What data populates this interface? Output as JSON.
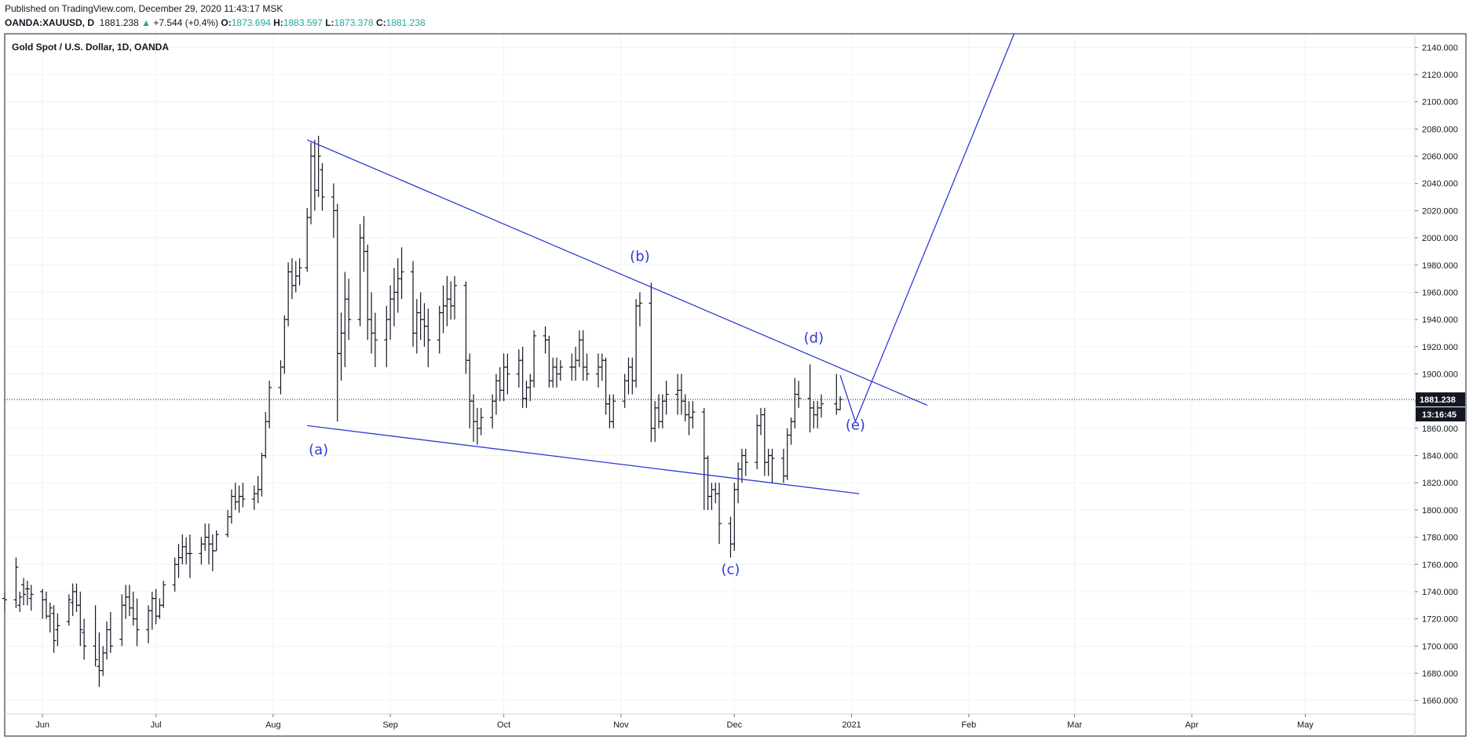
{
  "header": {
    "published": "Published on TradingView.com, December 29, 2020 11:43:17 MSK",
    "symbol": "OANDA:XAUUSD, D",
    "last": "1881.238",
    "change_arrow": "▲",
    "change": "+7.544 (+0.4%)",
    "open_label": "O:",
    "open": "1873.694",
    "high_label": "H:",
    "high": "1883.597",
    "low_label": "L:",
    "low": "1873.378",
    "close_label": "C:",
    "close": "1881.238"
  },
  "chart_data": {
    "type": "ohlc",
    "title": "Gold Spot / U.S. Dollar, 1D, OANDA",
    "ylim": [
      1650,
      2150
    ],
    "yticks": [
      1660,
      1680,
      1700,
      1720,
      1740,
      1760,
      1780,
      1800,
      1820,
      1840,
      1860,
      1880,
      1900,
      1920,
      1940,
      1960,
      1980,
      2000,
      2020,
      2040,
      2060,
      2080,
      2100,
      2120,
      2140
    ],
    "xlim": [
      "2020-05-22",
      "2021-05-30"
    ],
    "xticks": [
      {
        "label": "Jun",
        "date": "2020-06-01"
      },
      {
        "label": "Jul",
        "date": "2020-07-01"
      },
      {
        "label": "Aug",
        "date": "2020-08-01"
      },
      {
        "label": "Sep",
        "date": "2020-09-01"
      },
      {
        "label": "Oct",
        "date": "2020-10-01"
      },
      {
        "label": "Nov",
        "date": "2020-11-01"
      },
      {
        "label": "Dec",
        "date": "2020-12-01"
      },
      {
        "label": "2021",
        "date": "2021-01-01"
      },
      {
        "label": "Feb",
        "date": "2021-02-01"
      },
      {
        "label": "Mar",
        "date": "2021-03-01"
      },
      {
        "label": "Apr",
        "date": "2021-04-01"
      },
      {
        "label": "May",
        "date": "2021-05-01"
      }
    ],
    "current_price": {
      "value": 1881.238,
      "label": "1881.238",
      "countdown": "13:16:45"
    },
    "bars": [
      [
        "2020-05-22",
        1735,
        1740,
        1726,
        1734
      ],
      [
        "2020-05-25",
        1734,
        1765,
        1728,
        1758
      ],
      [
        "2020-05-26",
        1730,
        1740,
        1725,
        1736
      ],
      [
        "2020-05-27",
        1745,
        1750,
        1730,
        1738
      ],
      [
        "2020-05-28",
        1742,
        1748,
        1730,
        1742
      ],
      [
        "2020-05-29",
        1735,
        1745,
        1726,
        1738
      ],
      [
        "2020-06-01",
        1740,
        1742,
        1720,
        1734
      ],
      [
        "2020-06-02",
        1734,
        1740,
        1720,
        1722
      ],
      [
        "2020-06-03",
        1722,
        1732,
        1710,
        1728
      ],
      [
        "2020-06-04",
        1724,
        1730,
        1695,
        1704
      ],
      [
        "2020-06-05",
        1712,
        1724,
        1700,
        1715
      ],
      [
        "2020-06-08",
        1718,
        1738,
        1715,
        1734
      ],
      [
        "2020-06-09",
        1732,
        1746,
        1722,
        1740
      ],
      [
        "2020-06-10",
        1740,
        1746,
        1725,
        1730
      ],
      [
        "2020-06-11",
        1730,
        1740,
        1700,
        1712
      ],
      [
        "2020-06-12",
        1710,
        1720,
        1690,
        1700
      ],
      [
        "2020-06-15",
        1700,
        1730,
        1685,
        1690
      ],
      [
        "2020-06-16",
        1685,
        1710,
        1670,
        1682
      ],
      [
        "2020-06-17",
        1682,
        1700,
        1678,
        1695
      ],
      [
        "2020-06-18",
        1695,
        1718,
        1690,
        1712
      ],
      [
        "2020-06-19",
        1712,
        1725,
        1695,
        1700
      ],
      [
        "2020-06-22",
        1705,
        1738,
        1700,
        1730
      ],
      [
        "2020-06-23",
        1730,
        1745,
        1720,
        1736
      ],
      [
        "2020-06-24",
        1736,
        1745,
        1722,
        1728
      ],
      [
        "2020-06-25",
        1728,
        1740,
        1715,
        1720
      ],
      [
        "2020-06-26",
        1720,
        1735,
        1700,
        1712
      ],
      [
        "2020-06-29",
        1712,
        1730,
        1702,
        1726
      ],
      [
        "2020-06-30",
        1726,
        1740,
        1712,
        1735
      ],
      [
        "2020-07-01",
        1735,
        1742,
        1716,
        1722
      ],
      [
        "2020-07-02",
        1722,
        1735,
        1720,
        1730
      ],
      [
        "2020-07-03",
        1730,
        1748,
        1728,
        1745
      ],
      [
        "2020-07-06",
        1745,
        1765,
        1740,
        1760
      ],
      [
        "2020-07-07",
        1760,
        1775,
        1750,
        1765
      ],
      [
        "2020-07-08",
        1765,
        1782,
        1760,
        1773
      ],
      [
        "2020-07-09",
        1773,
        1780,
        1760,
        1768
      ],
      [
        "2020-07-10",
        1768,
        1782,
        1750,
        1768
      ],
      [
        "2020-07-13",
        1768,
        1780,
        1760,
        1775
      ],
      [
        "2020-07-14",
        1775,
        1790,
        1770,
        1780
      ],
      [
        "2020-07-15",
        1780,
        1790,
        1760,
        1775
      ],
      [
        "2020-07-16",
        1775,
        1782,
        1755,
        1770
      ],
      [
        "2020-07-17",
        1770,
        1785,
        1770,
        1782
      ],
      [
        "2020-07-20",
        1782,
        1800,
        1780,
        1795
      ],
      [
        "2020-07-21",
        1795,
        1815,
        1790,
        1810
      ],
      [
        "2020-07-22",
        1810,
        1820,
        1800,
        1806
      ],
      [
        "2020-07-23",
        1806,
        1818,
        1798,
        1810
      ],
      [
        "2020-07-24",
        1810,
        1820,
        1802,
        1808
      ],
      [
        "2020-07-27",
        1808,
        1818,
        1800,
        1812
      ],
      [
        "2020-07-28",
        1812,
        1825,
        1805,
        1815
      ],
      [
        "2020-07-29",
        1815,
        1842,
        1810,
        1840
      ],
      [
        "2020-07-30",
        1840,
        1872,
        1838,
        1865
      ],
      [
        "2020-07-31",
        1865,
        1895,
        1860,
        1890
      ],
      [
        "2020-08-03",
        1890,
        1910,
        1885,
        1905
      ],
      [
        "2020-08-04",
        1905,
        1943,
        1900,
        1940
      ],
      [
        "2020-08-05",
        1940,
        1982,
        1935,
        1975
      ],
      [
        "2020-08-06",
        1975,
        1985,
        1955,
        1965
      ],
      [
        "2020-08-07",
        1965,
        1983,
        1960,
        1972
      ],
      [
        "2020-08-08",
        1972,
        1985,
        1965,
        1978
      ],
      [
        "2020-08-10",
        1978,
        2022,
        1975,
        2015
      ],
      [
        "2020-08-11",
        2015,
        2070,
        2010,
        2060
      ],
      [
        "2020-08-12",
        2060,
        2072,
        2020,
        2035
      ],
      [
        "2020-08-13",
        2035,
        2075,
        2030,
        2060
      ],
      [
        "2020-08-14",
        2050,
        2055,
        2020,
        2030
      ],
      [
        "2020-08-17",
        2030,
        2040,
        2000,
        2020
      ],
      [
        "2020-08-18",
        2020,
        2025,
        1865,
        1915
      ],
      [
        "2020-08-19",
        1915,
        1945,
        1895,
        1930
      ],
      [
        "2020-08-20",
        1930,
        1975,
        1905,
        1955
      ],
      [
        "2020-08-21",
        1955,
        1970,
        1925,
        1940
      ],
      [
        "2020-08-24",
        1940,
        2010,
        1935,
        2000
      ],
      [
        "2020-08-25",
        2000,
        2016,
        1975,
        1990
      ],
      [
        "2020-08-26",
        1990,
        1995,
        1925,
        1940
      ],
      [
        "2020-08-27",
        1940,
        1960,
        1915,
        1930
      ],
      [
        "2020-08-28",
        1930,
        1945,
        1905,
        1925
      ],
      [
        "2020-08-31",
        1925,
        1950,
        1905,
        1940
      ],
      [
        "2020-09-01",
        1940,
        1965,
        1925,
        1955
      ],
      [
        "2020-09-02",
        1955,
        1978,
        1935,
        1960
      ],
      [
        "2020-09-03",
        1960,
        1985,
        1945,
        1970
      ],
      [
        "2020-09-04",
        1970,
        1993,
        1955,
        1975
      ],
      [
        "2020-09-07",
        1975,
        1983,
        1920,
        1930
      ],
      [
        "2020-09-08",
        1930,
        1955,
        1915,
        1945
      ],
      [
        "2020-09-09",
        1945,
        1960,
        1925,
        1940
      ],
      [
        "2020-09-10",
        1940,
        1952,
        1920,
        1935
      ],
      [
        "2020-09-11",
        1935,
        1948,
        1905,
        1925
      ],
      [
        "2020-09-14",
        1925,
        1950,
        1915,
        1945
      ],
      [
        "2020-09-15",
        1945,
        1965,
        1930,
        1950
      ],
      [
        "2020-09-16",
        1950,
        1972,
        1935,
        1955
      ],
      [
        "2020-09-17",
        1955,
        1968,
        1940,
        1950
      ],
      [
        "2020-09-18",
        1950,
        1972,
        1940,
        1965
      ],
      [
        "2020-09-21",
        1965,
        1968,
        1900,
        1910
      ],
      [
        "2020-09-22",
        1910,
        1915,
        1860,
        1880
      ],
      [
        "2020-09-23",
        1880,
        1885,
        1850,
        1865
      ],
      [
        "2020-09-24",
        1865,
        1875,
        1848,
        1860
      ],
      [
        "2020-09-25",
        1860,
        1875,
        1855,
        1868
      ],
      [
        "2020-09-28",
        1868,
        1885,
        1860,
        1880
      ],
      [
        "2020-09-29",
        1880,
        1900,
        1870,
        1895
      ],
      [
        "2020-09-30",
        1895,
        1905,
        1880,
        1888
      ],
      [
        "2020-10-01",
        1888,
        1915,
        1880,
        1905
      ],
      [
        "2020-10-02",
        1905,
        1915,
        1885,
        1900
      ],
      [
        "2020-10-05",
        1900,
        1918,
        1890,
        1910
      ],
      [
        "2020-10-06",
        1910,
        1920,
        1875,
        1882
      ],
      [
        "2020-10-07",
        1882,
        1895,
        1875,
        1890
      ],
      [
        "2020-10-08",
        1890,
        1900,
        1880,
        1895
      ],
      [
        "2020-10-09",
        1895,
        1932,
        1890,
        1928
      ],
      [
        "2020-10-12",
        1928,
        1935,
        1915,
        1925
      ],
      [
        "2020-10-13",
        1925,
        1928,
        1890,
        1895
      ],
      [
        "2020-10-14",
        1895,
        1912,
        1890,
        1905
      ],
      [
        "2020-10-15",
        1905,
        1912,
        1890,
        1900
      ],
      [
        "2020-10-16",
        1900,
        1910,
        1895,
        1905
      ],
      [
        "2020-10-19",
        1905,
        1915,
        1895,
        1905
      ],
      [
        "2020-10-20",
        1905,
        1920,
        1895,
        1910
      ],
      [
        "2020-10-21",
        1910,
        1932,
        1905,
        1925
      ],
      [
        "2020-10-22",
        1925,
        1932,
        1895,
        1905
      ],
      [
        "2020-10-23",
        1905,
        1915,
        1895,
        1900
      ],
      [
        "2020-10-26",
        1900,
        1915,
        1890,
        1905
      ],
      [
        "2020-10-27",
        1905,
        1915,
        1895,
        1910
      ],
      [
        "2020-10-28",
        1910,
        1912,
        1870,
        1878
      ],
      [
        "2020-10-29",
        1878,
        1885,
        1860,
        1865
      ],
      [
        "2020-10-30",
        1865,
        1885,
        1860,
        1880
      ],
      [
        "2020-11-02",
        1880,
        1900,
        1875,
        1895
      ],
      [
        "2020-11-03",
        1895,
        1912,
        1885,
        1905
      ],
      [
        "2020-11-04",
        1905,
        1912,
        1885,
        1895
      ],
      [
        "2020-11-05",
        1895,
        1955,
        1890,
        1950
      ],
      [
        "2020-11-06",
        1950,
        1960,
        1935,
        1952
      ],
      [
        "2020-11-09",
        1952,
        1967,
        1850,
        1860
      ],
      [
        "2020-11-10",
        1860,
        1880,
        1850,
        1875
      ],
      [
        "2020-11-11",
        1875,
        1885,
        1860,
        1865
      ],
      [
        "2020-11-12",
        1865,
        1885,
        1860,
        1880
      ],
      [
        "2020-11-13",
        1880,
        1895,
        1870,
        1885
      ],
      [
        "2020-11-16",
        1885,
        1900,
        1870,
        1888
      ],
      [
        "2020-11-17",
        1888,
        1900,
        1870,
        1880
      ],
      [
        "2020-11-18",
        1880,
        1885,
        1865,
        1870
      ],
      [
        "2020-11-19",
        1870,
        1880,
        1855,
        1868
      ],
      [
        "2020-11-20",
        1868,
        1880,
        1860,
        1872
      ],
      [
        "2020-11-23",
        1872,
        1875,
        1800,
        1838
      ],
      [
        "2020-11-24",
        1838,
        1840,
        1800,
        1810
      ],
      [
        "2020-11-25",
        1810,
        1820,
        1800,
        1815
      ],
      [
        "2020-11-26",
        1815,
        1820,
        1805,
        1812
      ],
      [
        "2020-11-27",
        1812,
        1820,
        1775,
        1790
      ],
      [
        "2020-11-30",
        1790,
        1795,
        1765,
        1775
      ],
      [
        "2020-12-01",
        1775,
        1820,
        1770,
        1815
      ],
      [
        "2020-12-02",
        1815,
        1835,
        1805,
        1830
      ],
      [
        "2020-12-03",
        1830,
        1845,
        1820,
        1840
      ],
      [
        "2020-12-04",
        1840,
        1845,
        1825,
        1835
      ],
      [
        "2020-12-07",
        1835,
        1870,
        1830,
        1862
      ],
      [
        "2020-12-08",
        1862,
        1875,
        1855,
        1870
      ],
      [
        "2020-12-09",
        1870,
        1875,
        1825,
        1835
      ],
      [
        "2020-12-10",
        1835,
        1845,
        1825,
        1840
      ],
      [
        "2020-12-11",
        1840,
        1845,
        1820,
        1838
      ],
      [
        "2020-12-14",
        1838,
        1845,
        1820,
        1825
      ],
      [
        "2020-12-15",
        1825,
        1860,
        1822,
        1855
      ],
      [
        "2020-12-16",
        1855,
        1868,
        1848,
        1865
      ],
      [
        "2020-12-17",
        1865,
        1897,
        1860,
        1885
      ],
      [
        "2020-12-18",
        1885,
        1895,
        1875,
        1882
      ],
      [
        "2020-12-21",
        1882,
        1907,
        1857,
        1875
      ],
      [
        "2020-12-22",
        1875,
        1880,
        1860,
        1870
      ],
      [
        "2020-12-23",
        1870,
        1880,
        1860,
        1875
      ],
      [
        "2020-12-24",
        1875,
        1885,
        1868,
        1878
      ],
      [
        "2020-12-28",
        1878,
        1900,
        1870,
        1874
      ],
      [
        "2020-12-29",
        1873.694,
        1883.597,
        1873.378,
        1881.238
      ]
    ],
    "annotations": [
      {
        "label": "(a)",
        "date": "2020-08-13",
        "price": 1841
      },
      {
        "label": "(b)",
        "date": "2020-11-06",
        "price": 1983
      },
      {
        "label": "(c)",
        "date": "2020-11-30",
        "price": 1753
      },
      {
        "label": "(d)",
        "date": "2020-12-22",
        "price": 1923
      },
      {
        "label": "(e)",
        "date": "2021-01-02",
        "price": 1859
      }
    ],
    "trendlines": [
      {
        "name": "upper",
        "from": [
          "2020-08-10",
          2072
        ],
        "to": [
          "2021-01-21",
          1877
        ]
      },
      {
        "name": "lower",
        "from": [
          "2020-08-10",
          1862
        ],
        "to": [
          "2021-01-03",
          1812
        ]
      },
      {
        "name": "projection",
        "points": [
          [
            "2020-12-29",
            1899
          ],
          [
            "2021-01-02",
            1865
          ],
          [
            "2021-02-13",
            2150
          ]
        ]
      }
    ],
    "colors": {
      "annotation": "#2f3bd6",
      "bars": "#131722",
      "grid": "#f0f3fa",
      "price_tag": "#131722",
      "up": "#26a69a"
    }
  }
}
